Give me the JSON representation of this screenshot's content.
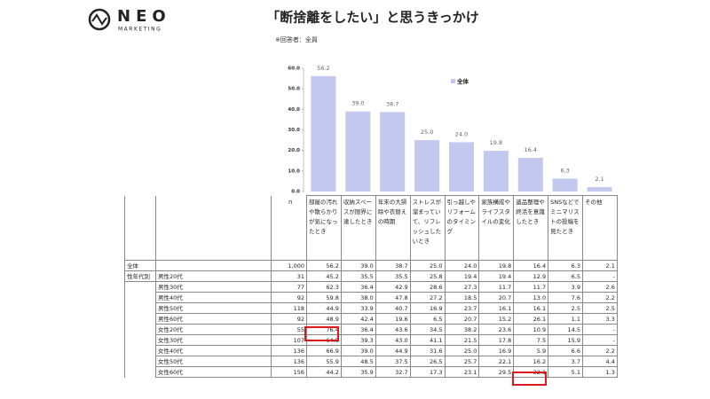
{
  "logo": {
    "name": "NEO",
    "tagline": "MARKETING"
  },
  "chart_data": {
    "type": "bar",
    "title": "「断捨離をしたい」と思うきっかけ",
    "subtitle": "※回答者：全員",
    "categories": [
      "部屋の汚れや散らかりが気になったとき",
      "収納スペースが限界に達したとき",
      "年末の大掃除や衣替えの時期",
      "ストレスが溜まっていて、リフレッシュしたいとき",
      "引っ越しやリフォームのタイミング",
      "家族構成やライフスタイルの変化",
      "遺品整理や終活を意識したとき",
      "SNSなどでミニマリストの投稿を見たとき",
      "その他"
    ],
    "series": [
      {
        "name": "全体",
        "color": "#c3c8ef",
        "values": [
          56.2,
          39.0,
          38.7,
          25.0,
          24.0,
          19.8,
          16.4,
          6.3,
          2.1
        ],
        "value_labels": [
          "56.2",
          "39.0",
          "38.7",
          "25.0",
          "24.0",
          "19.8",
          "16.4",
          "6.3",
          "2.1"
        ]
      }
    ],
    "ylim": [
      0,
      60
    ],
    "yticks": [
      {
        "value": 0,
        "label": "0.0"
      },
      {
        "value": 10,
        "label": "10.0"
      },
      {
        "value": 20,
        "label": "20.0"
      },
      {
        "value": 30,
        "label": "30.0"
      },
      {
        "value": 40,
        "label": "40.0"
      },
      {
        "value": 50,
        "label": "50.0"
      },
      {
        "value": 60,
        "label": "60.0"
      }
    ],
    "n_label": "n"
  },
  "table": {
    "rows": [
      {
        "group": "全体",
        "n": "1,000",
        "values": [
          "56.2",
          "39.0",
          "38.7",
          "25.0",
          "24.0",
          "19.8",
          "16.4",
          "6.3",
          "2.1"
        ]
      },
      {
        "group": "性年代別",
        "label": "男性20代",
        "n": "31",
        "values": [
          "45.2",
          "35.5",
          "35.5",
          "25.8",
          "19.4",
          "19.4",
          "12.9",
          "6.5",
          "-"
        ]
      },
      {
        "label": "男性30代",
        "n": "77",
        "values": [
          "62.3",
          "36.4",
          "42.9",
          "28.6",
          "27.3",
          "11.7",
          "11.7",
          "3.9",
          "2.6"
        ]
      },
      {
        "label": "男性40代",
        "n": "92",
        "values": [
          "59.8",
          "38.0",
          "47.8",
          "27.2",
          "18.5",
          "20.7",
          "13.0",
          "7.6",
          "2.2"
        ]
      },
      {
        "label": "男性50代",
        "n": "118",
        "values": [
          "44.9",
          "33.9",
          "40.7",
          "16.9",
          "23.7",
          "16.1",
          "16.1",
          "2.5",
          "2.5"
        ]
      },
      {
        "label": "男性60代",
        "n": "92",
        "values": [
          "48.9",
          "42.4",
          "19.6",
          "6.5",
          "20.7",
          "15.2",
          "26.1",
          "1.1",
          "3.3"
        ]
      },
      {
        "label": "女性20代",
        "n": "55",
        "values": [
          "76.4",
          "36.4",
          "43.6",
          "34.5",
          "38.2",
          "23.6",
          "10.9",
          "14.5",
          "-"
        ]
      },
      {
        "label": "女性30代",
        "n": "107",
        "values": [
          "64.5",
          "39.3",
          "43.0",
          "41.1",
          "21.5",
          "17.8",
          "7.5",
          "15.9",
          "-"
        ]
      },
      {
        "label": "女性40代",
        "n": "136",
        "values": [
          "66.9",
          "39.0",
          "44.9",
          "31.6",
          "25.0",
          "16.9",
          "5.9",
          "6.6",
          "2.2"
        ]
      },
      {
        "label": "女性50代",
        "n": "136",
        "values": [
          "55.9",
          "48.5",
          "37.5",
          "26.5",
          "25.7",
          "22.1",
          "16.2",
          "3.7",
          "4.4"
        ]
      },
      {
        "label": "女性60代",
        "n": "156",
        "values": [
          "44.2",
          "35.9",
          "32.7",
          "17.3",
          "23.1",
          "29.5",
          "32.1",
          "5.1",
          "1.3"
        ]
      }
    ]
  }
}
